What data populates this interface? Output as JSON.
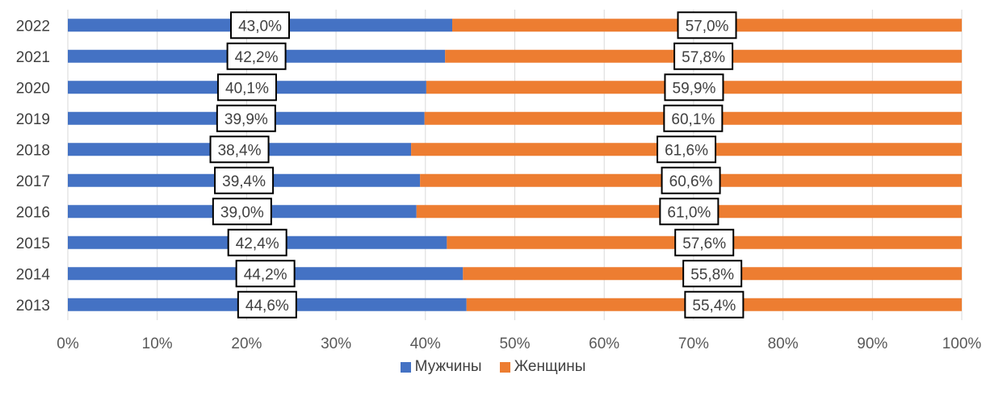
{
  "chart_data": {
    "type": "bar",
    "orientation": "horizontal",
    "stacked": "percent",
    "categories": [
      "2022",
      "2021",
      "2020",
      "2019",
      "2018",
      "2017",
      "2016",
      "2015",
      "2014",
      "2013"
    ],
    "series": [
      {
        "name": "Мужчины",
        "color": "#4472C4",
        "values": [
          43.0,
          42.2,
          40.1,
          39.9,
          38.4,
          39.4,
          39.0,
          42.4,
          44.2,
          44.6
        ],
        "labels": [
          "43,0%",
          "42,2%",
          "40,1%",
          "39,9%",
          "38,4%",
          "39,4%",
          "39,0%",
          "42,4%",
          "44,2%",
          "44,6%"
        ]
      },
      {
        "name": "Женщины",
        "color": "#ED7D31",
        "values": [
          57.0,
          57.8,
          59.9,
          60.1,
          61.6,
          60.6,
          61.0,
          57.6,
          55.8,
          55.4
        ],
        "labels": [
          "57,0%",
          "57,8%",
          "59,9%",
          "60,1%",
          "61,6%",
          "60,6%",
          "61,0%",
          "57,6%",
          "55,8%",
          "55,4%"
        ]
      }
    ],
    "x_ticks": [
      "0%",
      "10%",
      "20%",
      "30%",
      "40%",
      "50%",
      "60%",
      "70%",
      "80%",
      "90%",
      "100%"
    ],
    "xlim": [
      0,
      100
    ],
    "grid": "vertical",
    "legend": "bottom-center",
    "title": "",
    "xlabel": "",
    "ylabel": ""
  }
}
